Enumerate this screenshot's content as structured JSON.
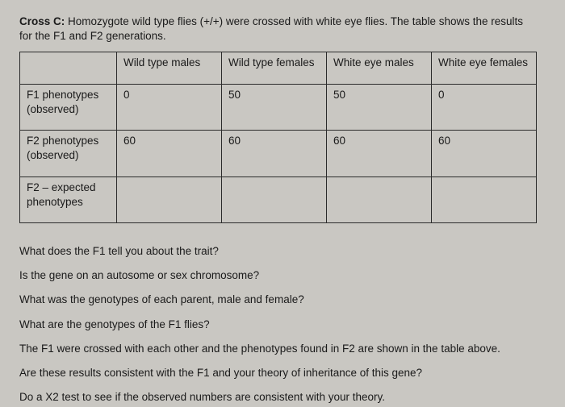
{
  "intro": {
    "label": "Cross C:",
    "text_a": "Homozygote wild type flies (+/+) were crossed with white eye flies.  The table shows the results",
    "text_b": "for the F1 and F2 generations."
  },
  "table": {
    "columns": [
      "",
      "Wild type males",
      "Wild type females",
      "White eye males",
      "White eye females"
    ],
    "rows": [
      {
        "head": "F1 phenotypes (observed)",
        "cells": [
          "0",
          "50",
          "50",
          "0"
        ]
      },
      {
        "head": "F2 phenotypes (observed)",
        "cells": [
          "60",
          "60",
          "60",
          "60"
        ]
      },
      {
        "head": "F2 – expected phenotypes",
        "cells": [
          "",
          "",
          "",
          ""
        ]
      }
    ]
  },
  "questions": [
    "What does the F1 tell you about the trait?",
    "Is the gene on an autosome or sex chromosome?",
    "What was the genotypes of each parent, male and female?",
    "What are the genotypes of the F1 flies?",
    "The F1 were crossed with each other and the phenotypes found in F2 are shown in the table above.",
    "Are these results consistent with the F1 and your theory of inheritance of this gene?",
    "Do a X2 test to see if the observed numbers are consistent with your theory."
  ],
  "colors": {
    "background": "#c9c7c2",
    "text": "#1a1a1a",
    "border": "#2b2b2b"
  }
}
